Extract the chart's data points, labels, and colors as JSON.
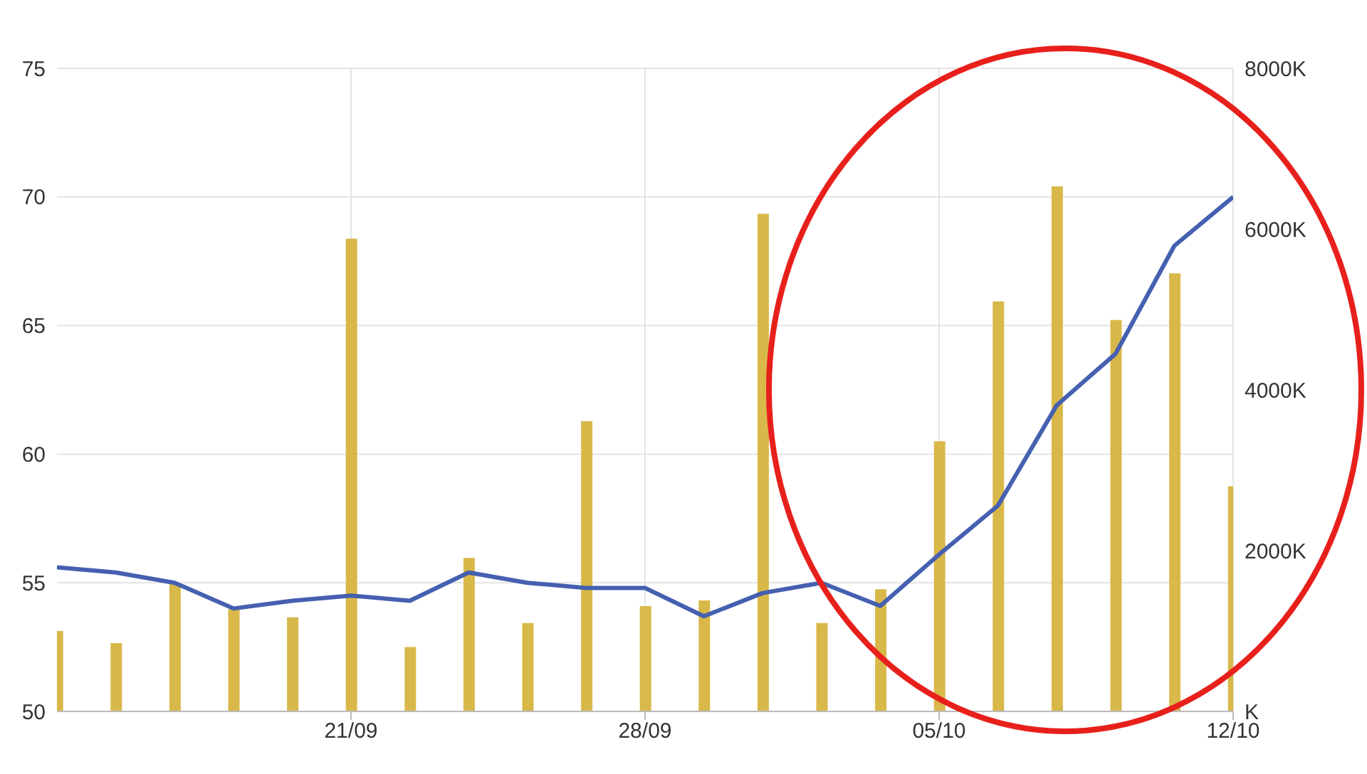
{
  "chart_data": {
    "type": "bar",
    "categories": [
      null,
      null,
      null,
      null,
      null,
      "21/09",
      null,
      null,
      null,
      null,
      "28/09",
      null,
      null,
      null,
      null,
      "05/10",
      null,
      null,
      null,
      null,
      "12/10"
    ],
    "series": [
      {
        "axis": "y2",
        "color": "#d9b84a",
        "values": [
          1000,
          850,
          1590,
          1270,
          1170,
          5880,
          800,
          1910,
          1100,
          3610,
          1310,
          1380,
          6190,
          1100,
          1520,
          3360,
          5100,
          6530,
          4870,
          5450,
          2800
        ]
      },
      {
        "type": "line",
        "color": "#4560b0",
        "values": [
          55.6,
          55.4,
          55.0,
          54.0,
          54.3,
          54.5,
          54.3,
          55.4,
          55.0,
          54.8,
          54.8,
          53.7,
          54.6,
          55.0,
          54.1,
          56.1,
          58.0,
          61.9,
          63.9,
          68.1,
          70.0
        ]
      }
    ],
    "ylim": [
      50,
      75
    ],
    "yticks": [
      50,
      55,
      60,
      65,
      70,
      75
    ],
    "y2lim": [
      0,
      8000
    ],
    "y2ticks": [
      {
        "value": 0,
        "label": "K"
      },
      {
        "value": 2000,
        "label": "2000K"
      },
      {
        "value": 4000,
        "label": "4000K"
      },
      {
        "value": 6000,
        "label": "6000K"
      },
      {
        "value": 8000,
        "label": "8000K"
      }
    ],
    "grid": true,
    "marker": "none"
  }
}
